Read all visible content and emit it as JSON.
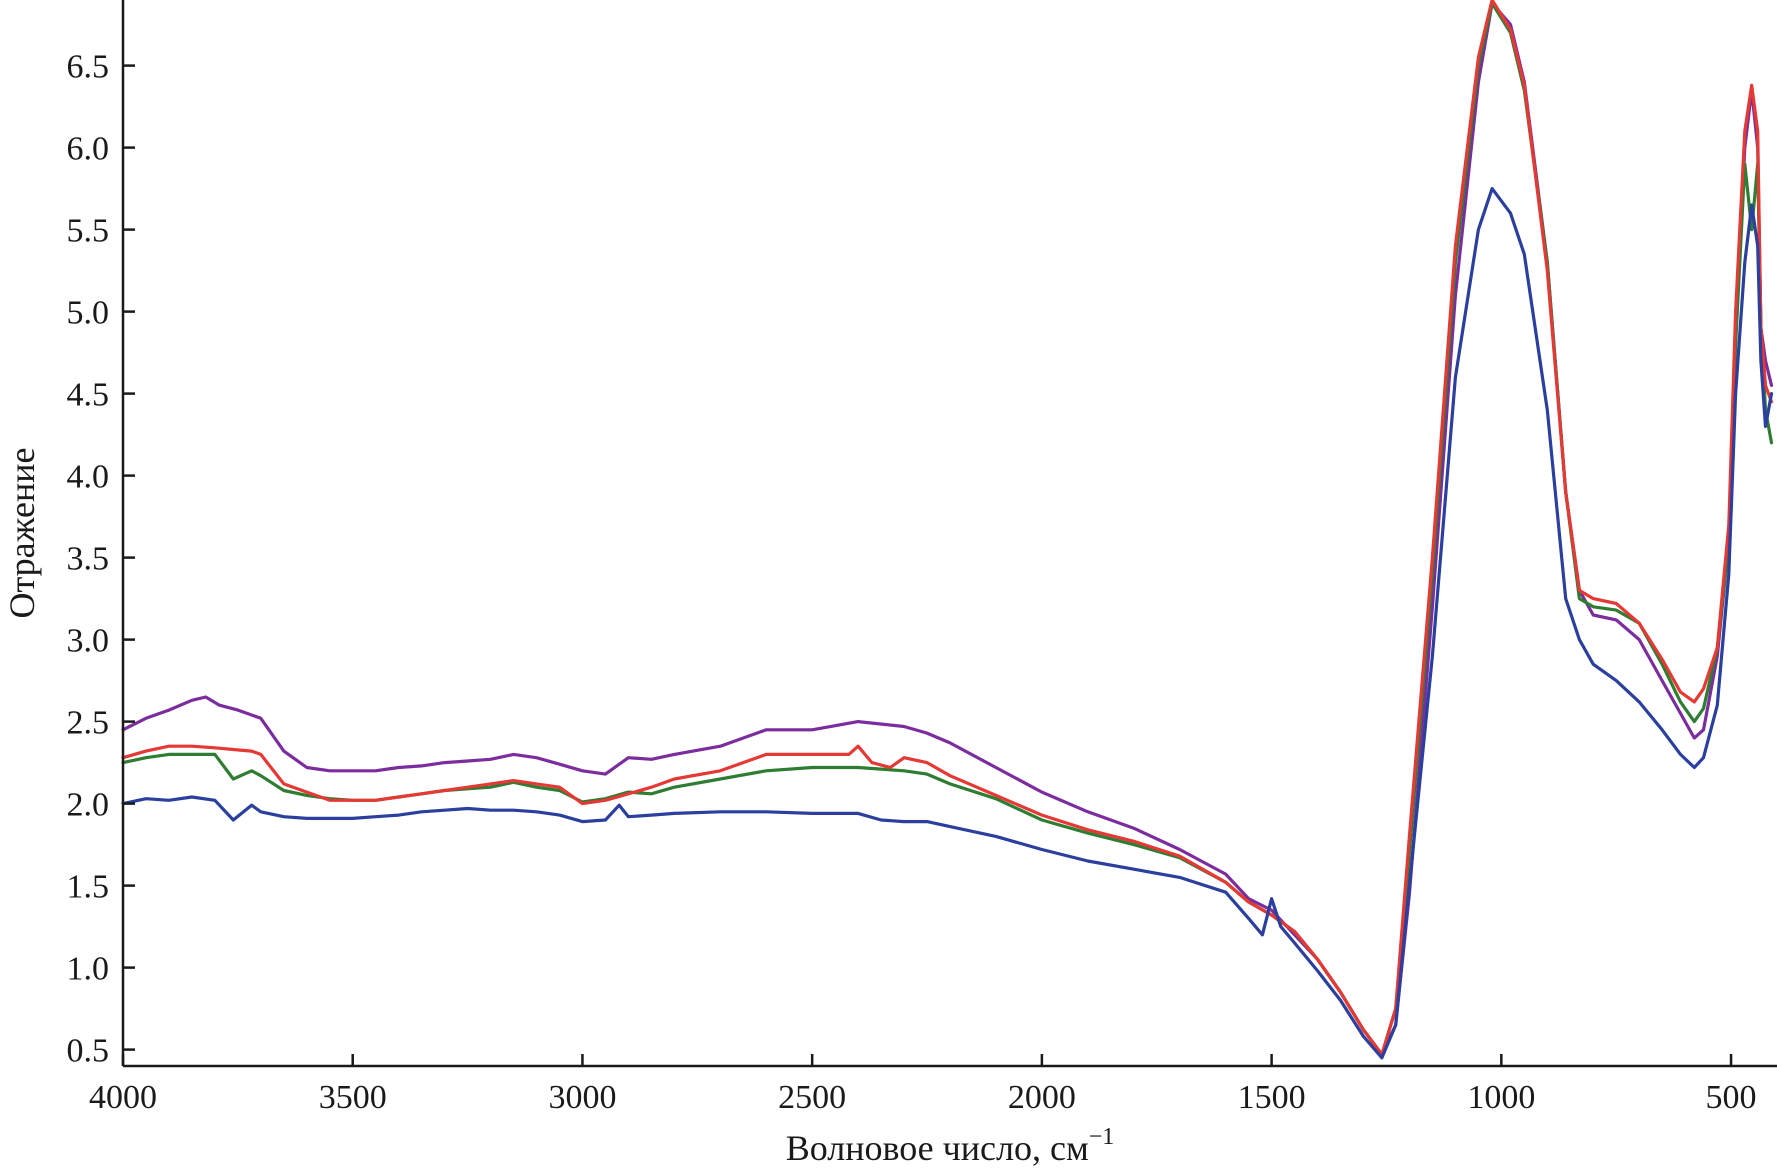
{
  "chart_data": {
    "type": "line",
    "title": "",
    "xlabel": "Волновое число, см",
    "xlabel_sup": "−1",
    "ylabel": "Отражение",
    "xlim": [
      4000,
      400
    ],
    "ylim": [
      0.4,
      6.9
    ],
    "x_reversed": true,
    "grid": false,
    "legend": "none",
    "x_ticks": [
      4000,
      3500,
      3000,
      2500,
      2000,
      1500,
      1000,
      500
    ],
    "y_ticks": [
      0.5,
      1.0,
      1.5,
      2.0,
      2.5,
      3.0,
      3.5,
      4.0,
      4.5,
      5.0,
      5.5,
      6.0,
      6.5
    ],
    "y_tick_labels": [
      "0.5",
      "1.0",
      "1.5",
      "2.0",
      "2.5",
      "3.0",
      "3.5",
      "4.0",
      "4.5",
      "5.0",
      "5.5",
      "6.0",
      "6.5"
    ],
    "series": [
      {
        "color": "#7b2d9e",
        "points": [
          [
            4000,
            2.45
          ],
          [
            3950,
            2.52
          ],
          [
            3900,
            2.57
          ],
          [
            3850,
            2.63
          ],
          [
            3820,
            2.65
          ],
          [
            3790,
            2.6
          ],
          [
            3750,
            2.57
          ],
          [
            3700,
            2.52
          ],
          [
            3650,
            2.32
          ],
          [
            3600,
            2.22
          ],
          [
            3550,
            2.2
          ],
          [
            3500,
            2.2
          ],
          [
            3450,
            2.2
          ],
          [
            3400,
            2.22
          ],
          [
            3350,
            2.23
          ],
          [
            3300,
            2.25
          ],
          [
            3250,
            2.26
          ],
          [
            3200,
            2.27
          ],
          [
            3150,
            2.3
          ],
          [
            3100,
            2.28
          ],
          [
            3050,
            2.24
          ],
          [
            3000,
            2.2
          ],
          [
            2950,
            2.18
          ],
          [
            2900,
            2.28
          ],
          [
            2850,
            2.27
          ],
          [
            2800,
            2.3
          ],
          [
            2700,
            2.35
          ],
          [
            2600,
            2.45
          ],
          [
            2500,
            2.45
          ],
          [
            2400,
            2.5
          ],
          [
            2300,
            2.47
          ],
          [
            2250,
            2.43
          ],
          [
            2200,
            2.37
          ],
          [
            2100,
            2.22
          ],
          [
            2000,
            2.07
          ],
          [
            1900,
            1.95
          ],
          [
            1800,
            1.85
          ],
          [
            1700,
            1.72
          ],
          [
            1600,
            1.57
          ],
          [
            1550,
            1.42
          ],
          [
            1500,
            1.35
          ],
          [
            1450,
            1.2
          ],
          [
            1400,
            1.05
          ],
          [
            1350,
            0.85
          ],
          [
            1300,
            0.62
          ],
          [
            1260,
            0.47
          ],
          [
            1230,
            0.65
          ],
          [
            1200,
            1.45
          ],
          [
            1150,
            3.2
          ],
          [
            1100,
            5.1
          ],
          [
            1050,
            6.4
          ],
          [
            1020,
            6.88
          ],
          [
            980,
            6.75
          ],
          [
            950,
            6.4
          ],
          [
            900,
            5.3
          ],
          [
            860,
            3.9
          ],
          [
            830,
            3.3
          ],
          [
            800,
            3.15
          ],
          [
            750,
            3.12
          ],
          [
            700,
            3.0
          ],
          [
            650,
            2.75
          ],
          [
            610,
            2.55
          ],
          [
            580,
            2.4
          ],
          [
            560,
            2.45
          ],
          [
            530,
            2.9
          ],
          [
            505,
            3.6
          ],
          [
            490,
            4.9
          ],
          [
            470,
            6.0
          ],
          [
            455,
            6.35
          ],
          [
            442,
            6.0
          ],
          [
            435,
            4.9
          ],
          [
            425,
            4.7
          ],
          [
            412,
            4.55
          ]
        ]
      },
      {
        "color": "#2e7d32",
        "points": [
          [
            4000,
            2.25
          ],
          [
            3950,
            2.28
          ],
          [
            3900,
            2.3
          ],
          [
            3850,
            2.3
          ],
          [
            3800,
            2.3
          ],
          [
            3760,
            2.15
          ],
          [
            3720,
            2.2
          ],
          [
            3700,
            2.17
          ],
          [
            3650,
            2.08
          ],
          [
            3600,
            2.05
          ],
          [
            3550,
            2.03
          ],
          [
            3500,
            2.02
          ],
          [
            3450,
            2.02
          ],
          [
            3400,
            2.04
          ],
          [
            3350,
            2.06
          ],
          [
            3300,
            2.08
          ],
          [
            3250,
            2.09
          ],
          [
            3200,
            2.1
          ],
          [
            3150,
            2.13
          ],
          [
            3100,
            2.1
          ],
          [
            3050,
            2.08
          ],
          [
            3000,
            2.01
          ],
          [
            2950,
            2.03
          ],
          [
            2900,
            2.07
          ],
          [
            2850,
            2.06
          ],
          [
            2800,
            2.1
          ],
          [
            2700,
            2.15
          ],
          [
            2600,
            2.2
          ],
          [
            2500,
            2.22
          ],
          [
            2400,
            2.22
          ],
          [
            2300,
            2.2
          ],
          [
            2250,
            2.18
          ],
          [
            2200,
            2.12
          ],
          [
            2100,
            2.03
          ],
          [
            2000,
            1.9
          ],
          [
            1900,
            1.82
          ],
          [
            1800,
            1.75
          ],
          [
            1700,
            1.67
          ],
          [
            1600,
            1.52
          ],
          [
            1550,
            1.4
          ],
          [
            1500,
            1.32
          ],
          [
            1450,
            1.22
          ],
          [
            1400,
            1.05
          ],
          [
            1350,
            0.85
          ],
          [
            1300,
            0.62
          ],
          [
            1260,
            0.47
          ],
          [
            1230,
            0.75
          ],
          [
            1200,
            1.7
          ],
          [
            1150,
            3.4
          ],
          [
            1100,
            5.3
          ],
          [
            1050,
            6.5
          ],
          [
            1020,
            6.88
          ],
          [
            980,
            6.7
          ],
          [
            950,
            6.35
          ],
          [
            900,
            5.3
          ],
          [
            860,
            3.9
          ],
          [
            830,
            3.25
          ],
          [
            800,
            3.2
          ],
          [
            750,
            3.18
          ],
          [
            700,
            3.1
          ],
          [
            650,
            2.85
          ],
          [
            610,
            2.62
          ],
          [
            580,
            2.5
          ],
          [
            560,
            2.58
          ],
          [
            530,
            2.95
          ],
          [
            505,
            3.6
          ],
          [
            490,
            4.8
          ],
          [
            470,
            5.9
          ],
          [
            455,
            5.5
          ],
          [
            442,
            5.9
          ],
          [
            435,
            4.9
          ],
          [
            425,
            4.4
          ],
          [
            412,
            4.2
          ]
        ]
      },
      {
        "color": "#e53935",
        "points": [
          [
            4000,
            2.28
          ],
          [
            3950,
            2.32
          ],
          [
            3900,
            2.35
          ],
          [
            3850,
            2.35
          ],
          [
            3800,
            2.34
          ],
          [
            3760,
            2.33
          ],
          [
            3720,
            2.32
          ],
          [
            3700,
            2.3
          ],
          [
            3650,
            2.12
          ],
          [
            3600,
            2.07
          ],
          [
            3550,
            2.02
          ],
          [
            3500,
            2.02
          ],
          [
            3450,
            2.02
          ],
          [
            3400,
            2.04
          ],
          [
            3350,
            2.06
          ],
          [
            3300,
            2.08
          ],
          [
            3250,
            2.1
          ],
          [
            3200,
            2.12
          ],
          [
            3150,
            2.14
          ],
          [
            3100,
            2.12
          ],
          [
            3050,
            2.1
          ],
          [
            3000,
            2.0
          ],
          [
            2950,
            2.02
          ],
          [
            2900,
            2.06
          ],
          [
            2850,
            2.1
          ],
          [
            2800,
            2.15
          ],
          [
            2700,
            2.2
          ],
          [
            2600,
            2.3
          ],
          [
            2500,
            2.3
          ],
          [
            2420,
            2.3
          ],
          [
            2400,
            2.35
          ],
          [
            2370,
            2.25
          ],
          [
            2330,
            2.22
          ],
          [
            2300,
            2.28
          ],
          [
            2250,
            2.25
          ],
          [
            2200,
            2.17
          ],
          [
            2100,
            2.05
          ],
          [
            2000,
            1.93
          ],
          [
            1900,
            1.84
          ],
          [
            1800,
            1.77
          ],
          [
            1700,
            1.68
          ],
          [
            1600,
            1.52
          ],
          [
            1550,
            1.4
          ],
          [
            1500,
            1.32
          ],
          [
            1450,
            1.22
          ],
          [
            1400,
            1.05
          ],
          [
            1350,
            0.85
          ],
          [
            1300,
            0.62
          ],
          [
            1260,
            0.47
          ],
          [
            1230,
            0.75
          ],
          [
            1200,
            1.8
          ],
          [
            1150,
            3.5
          ],
          [
            1100,
            5.4
          ],
          [
            1050,
            6.55
          ],
          [
            1020,
            6.9
          ],
          [
            980,
            6.72
          ],
          [
            950,
            6.38
          ],
          [
            900,
            5.25
          ],
          [
            860,
            3.9
          ],
          [
            830,
            3.3
          ],
          [
            800,
            3.25
          ],
          [
            750,
            3.22
          ],
          [
            700,
            3.1
          ],
          [
            650,
            2.88
          ],
          [
            610,
            2.68
          ],
          [
            580,
            2.62
          ],
          [
            560,
            2.7
          ],
          [
            530,
            2.95
          ],
          [
            505,
            3.7
          ],
          [
            490,
            5.0
          ],
          [
            470,
            6.1
          ],
          [
            455,
            6.38
          ],
          [
            442,
            6.1
          ],
          [
            435,
            4.9
          ],
          [
            425,
            4.55
          ],
          [
            412,
            4.45
          ]
        ]
      },
      {
        "color": "#2a3f9e",
        "points": [
          [
            4000,
            2.0
          ],
          [
            3950,
            2.03
          ],
          [
            3900,
            2.02
          ],
          [
            3850,
            2.04
          ],
          [
            3800,
            2.02
          ],
          [
            3760,
            1.9
          ],
          [
            3720,
            1.99
          ],
          [
            3700,
            1.95
          ],
          [
            3650,
            1.92
          ],
          [
            3600,
            1.91
          ],
          [
            3550,
            1.91
          ],
          [
            3500,
            1.91
          ],
          [
            3450,
            1.92
          ],
          [
            3400,
            1.93
          ],
          [
            3350,
            1.95
          ],
          [
            3300,
            1.96
          ],
          [
            3250,
            1.97
          ],
          [
            3200,
            1.96
          ],
          [
            3150,
            1.96
          ],
          [
            3100,
            1.95
          ],
          [
            3050,
            1.93
          ],
          [
            3000,
            1.89
          ],
          [
            2950,
            1.9
          ],
          [
            2920,
            1.99
          ],
          [
            2900,
            1.92
          ],
          [
            2850,
            1.93
          ],
          [
            2800,
            1.94
          ],
          [
            2700,
            1.95
          ],
          [
            2600,
            1.95
          ],
          [
            2500,
            1.94
          ],
          [
            2400,
            1.94
          ],
          [
            2350,
            1.9
          ],
          [
            2300,
            1.89
          ],
          [
            2250,
            1.89
          ],
          [
            2200,
            1.86
          ],
          [
            2100,
            1.8
          ],
          [
            2000,
            1.72
          ],
          [
            1900,
            1.65
          ],
          [
            1800,
            1.6
          ],
          [
            1700,
            1.55
          ],
          [
            1600,
            1.46
          ],
          [
            1550,
            1.3
          ],
          [
            1520,
            1.2
          ],
          [
            1500,
            1.42
          ],
          [
            1480,
            1.25
          ],
          [
            1450,
            1.15
          ],
          [
            1400,
            0.98
          ],
          [
            1350,
            0.8
          ],
          [
            1300,
            0.58
          ],
          [
            1260,
            0.45
          ],
          [
            1230,
            0.65
          ],
          [
            1200,
            1.5
          ],
          [
            1150,
            2.9
          ],
          [
            1100,
            4.6
          ],
          [
            1050,
            5.5
          ],
          [
            1020,
            5.75
          ],
          [
            980,
            5.6
          ],
          [
            950,
            5.35
          ],
          [
            900,
            4.4
          ],
          [
            860,
            3.25
          ],
          [
            830,
            3.0
          ],
          [
            800,
            2.85
          ],
          [
            750,
            2.75
          ],
          [
            700,
            2.62
          ],
          [
            650,
            2.45
          ],
          [
            610,
            2.3
          ],
          [
            580,
            2.22
          ],
          [
            560,
            2.28
          ],
          [
            530,
            2.6
          ],
          [
            505,
            3.4
          ],
          [
            490,
            4.5
          ],
          [
            470,
            5.3
          ],
          [
            455,
            5.65
          ],
          [
            442,
            5.4
          ],
          [
            435,
            4.7
          ],
          [
            425,
            4.3
          ],
          [
            412,
            4.5
          ]
        ]
      }
    ]
  }
}
